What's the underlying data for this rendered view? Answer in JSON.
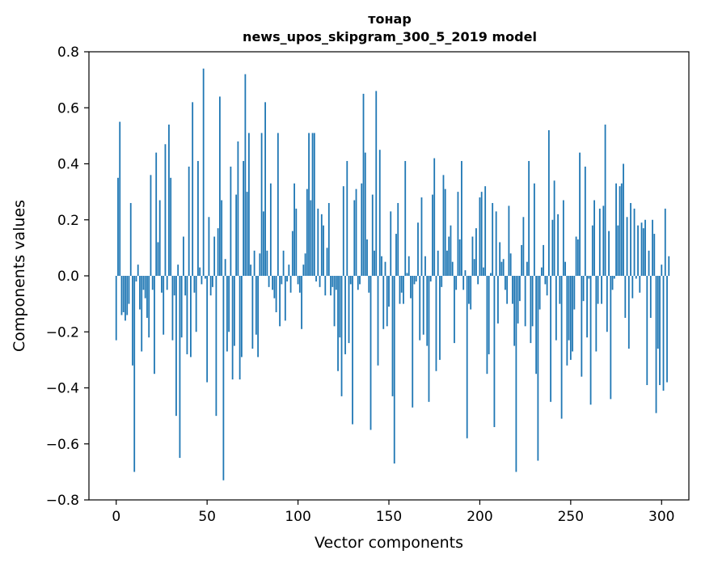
{
  "chart_data": {
    "type": "bar",
    "title_line1": "тонар",
    "title_line2": "news_upos_skipgram_300_5_2019 model",
    "xlabel": "Vector components",
    "ylabel": "Components values",
    "xlim": [
      -15,
      315
    ],
    "ylim": [
      -0.8,
      0.8
    ],
    "xticks": [
      0,
      50,
      100,
      150,
      200,
      250,
      300
    ],
    "yticks": [
      -0.8,
      -0.6,
      -0.4,
      -0.2,
      0.0,
      0.2,
      0.4,
      0.6,
      0.8
    ],
    "ytick_labels": [
      "−0.8",
      "−0.6",
      "−0.4",
      "−0.2",
      "0.0",
      "0.2",
      "0.4",
      "0.6",
      "0.8"
    ],
    "bar_color": "#1f77b4",
    "values": [
      -0.23,
      0.35,
      0.55,
      -0.14,
      -0.13,
      -0.16,
      -0.14,
      -0.1,
      0.26,
      -0.32,
      -0.7,
      -0.02,
      0.04,
      -0.12,
      -0.27,
      -0.05,
      -0.08,
      -0.15,
      -0.22,
      0.36,
      -0.05,
      -0.35,
      0.44,
      0.12,
      0.27,
      -0.06,
      -0.21,
      0.47,
      -0.05,
      0.54,
      0.35,
      -0.23,
      -0.07,
      -0.5,
      0.04,
      -0.65,
      -0.22,
      0.14,
      -0.07,
      -0.28,
      0.39,
      -0.29,
      0.62,
      -0.06,
      -0.2,
      0.41,
      0.03,
      -0.03,
      0.74,
      -0.01,
      -0.38,
      0.21,
      -0.07,
      -0.04,
      0.14,
      -0.5,
      0.17,
      0.64,
      0.27,
      -0.73,
      0.06,
      -0.27,
      -0.2,
      0.39,
      -0.37,
      -0.25,
      0.29,
      0.48,
      -0.37,
      -0.29,
      0.41,
      0.72,
      0.3,
      0.51,
      0.04,
      -0.26,
      0.09,
      -0.21,
      -0.29,
      0.08,
      0.51,
      0.23,
      0.62,
      0.09,
      -0.04,
      0.33,
      -0.05,
      -0.08,
      -0.13,
      0.51,
      -0.18,
      -0.03,
      0.09,
      -0.16,
      -0.02,
      0.04,
      -0.06,
      0.16,
      0.33,
      0.24,
      -0.03,
      -0.06,
      -0.19,
      0.04,
      0.08,
      0.31,
      0.51,
      0.27,
      0.51,
      0.51,
      -0.02,
      0.24,
      -0.04,
      0.22,
      0.18,
      -0.07,
      0.1,
      0.26,
      -0.07,
      -0.04,
      -0.18,
      -0.05,
      -0.34,
      -0.22,
      -0.43,
      0.32,
      -0.28,
      0.41,
      -0.24,
      -0.03,
      -0.53,
      0.27,
      0.31,
      -0.05,
      -0.03,
      0.33,
      0.65,
      0.44,
      0.13,
      -0.06,
      -0.55,
      0.29,
      0.09,
      0.66,
      -0.32,
      0.45,
      0.07,
      -0.19,
      0.05,
      -0.18,
      -0.11,
      0.23,
      -0.43,
      -0.67,
      0.15,
      0.26,
      -0.1,
      -0.06,
      -0.1,
      0.41,
      0.01,
      0.07,
      -0.08,
      -0.47,
      -0.03,
      -0.02,
      0.19,
      -0.23,
      0.28,
      -0.21,
      0.07,
      -0.25,
      -0.45,
      -0.02,
      0.29,
      0.42,
      -0.34,
      0.09,
      -0.3,
      -0.04,
      0.36,
      0.31,
      0.09,
      0.14,
      0.18,
      0.05,
      -0.24,
      -0.05,
      0.3,
      0.13,
      0.41,
      -0.05,
      0.02,
      -0.58,
      -0.1,
      -0.12,
      0.14,
      0.06,
      0.17,
      -0.03,
      0.28,
      0.3,
      0.03,
      0.32,
      -0.35,
      -0.28,
      0.01,
      0.26,
      -0.54,
      0.23,
      -0.17,
      0.12,
      0.05,
      0.06,
      -0.05,
      -0.1,
      0.25,
      0.08,
      -0.1,
      -0.25,
      -0.7,
      -0.17,
      -0.09,
      0.11,
      0.21,
      -0.18,
      0.05,
      0.41,
      -0.24,
      -0.18,
      0.33,
      -0.35,
      -0.66,
      -0.12,
      0.03,
      0.11,
      -0.03,
      -0.07,
      0.52,
      -0.45,
      0.2,
      0.34,
      -0.23,
      0.22,
      -0.1,
      -0.51,
      0.27,
      0.05,
      -0.32,
      -0.23,
      -0.3,
      -0.27,
      -0.12,
      0.14,
      0.13,
      0.44,
      -0.36,
      -0.09,
      0.39,
      -0.22,
      -0.01,
      -0.46,
      0.18,
      0.27,
      -0.27,
      -0.1,
      0.24,
      -0.1,
      0.25,
      0.54,
      -0.2,
      0.16,
      -0.44,
      -0.05,
      -0.01,
      0.33,
      0.18,
      0.32,
      0.33,
      0.4,
      -0.15,
      0.21,
      -0.26,
      0.26,
      -0.08,
      0.24,
      -0.01,
      0.18,
      -0.06,
      0.19,
      0.17,
      0.2,
      -0.39,
      0.09,
      -0.15,
      0.2,
      0.15,
      -0.49,
      -0.26,
      -0.39,
      0.04,
      -0.41,
      0.24,
      -0.38,
      0.07
    ]
  }
}
